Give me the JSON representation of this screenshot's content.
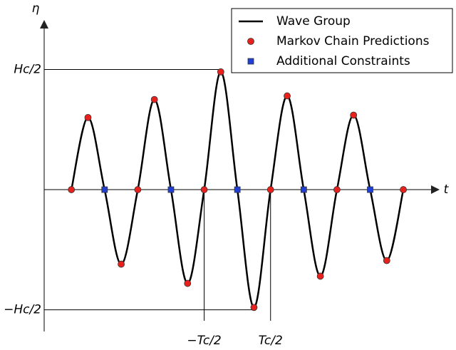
{
  "chart_data": {
    "type": "line",
    "xlabel": "t",
    "ylabel": "η",
    "xlim": [
      -5.82,
      6.05
    ],
    "ylim": [
      -1.18,
      1.4
    ],
    "xticks": [
      {
        "value": -1,
        "label": "−Tc/2"
      },
      {
        "value": 1,
        "label": "Tc/2"
      }
    ],
    "yticks": [
      {
        "value": 1,
        "label": "Hc/2"
      },
      {
        "value": -1,
        "label": "−Hc/2"
      }
    ],
    "series": [
      {
        "name": "Wave Group",
        "color": "#000000",
        "marker": "line",
        "x": [
          -5,
          -4.5,
          -4,
          -3.5,
          -3,
          -2.5,
          -2,
          -1.5,
          -1,
          -0.5,
          0,
          0.5,
          1,
          1.5,
          2,
          2.5,
          3,
          3.5,
          4,
          4.5,
          5
        ],
        "values": [
          0,
          0.6,
          0,
          -0.62,
          0,
          0.75,
          0,
          -0.78,
          0,
          0.98,
          0,
          -0.98,
          0,
          0.78,
          0,
          -0.72,
          0,
          0.62,
          0,
          -0.59,
          0
        ]
      },
      {
        "name": "Markov Chain Predictions",
        "color": "#e8211d",
        "marker": "circle",
        "x": [
          -5,
          -4.5,
          -3.5,
          -3,
          -2.5,
          -1.5,
          -1,
          -0.5,
          0.5,
          1,
          1.5,
          2.5,
          3,
          3.5,
          4.5,
          5
        ],
        "values": [
          0,
          0.6,
          -0.62,
          0,
          0.75,
          -0.78,
          0,
          0.98,
          -0.98,
          0,
          0.78,
          -0.72,
          0,
          0.62,
          -0.59,
          0
        ]
      },
      {
        "name": "Additional Constraints",
        "color": "#1f3fd6",
        "marker": "square",
        "x": [
          -4,
          -2,
          0,
          2,
          4
        ],
        "values": [
          0,
          0,
          0,
          0,
          0
        ]
      }
    ]
  }
}
